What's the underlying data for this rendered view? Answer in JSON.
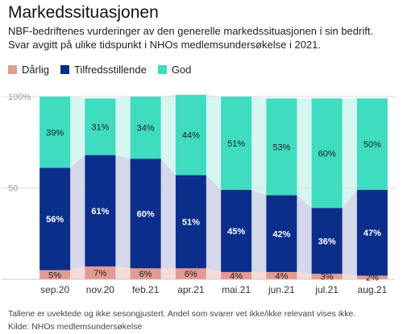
{
  "title": "Markedssituasjonen",
  "subtitle": "NBF-bedriftenes vurderinger av den generelle markedssituasjonen i sin bedrift. Svar avgitt på ulike tidspunkt i NHOs medlemsundersøkelse i 2021.",
  "footnote": "Tallene er uvektede og ikke sesongjustert. Andel som svarer vet ikke/ikke relevant vises ikke.",
  "source": "Kilde: NHOs medlemsundersøkelse",
  "colors": {
    "darlig": "#e29b93",
    "tilfreds": "#0b2e8a",
    "god": "#3fdcc0",
    "darlig_band": "#f6dcd9",
    "tilfreds_band": "#d4d8ea",
    "god_band": "#d6f6f0"
  },
  "chart_data": {
    "type": "bar",
    "stacked": true,
    "categories": [
      "sep.20",
      "nov.20",
      "feb.21",
      "apr.21",
      "mai.21",
      "jun.21",
      "jul.21",
      "aug.21"
    ],
    "series": [
      {
        "name": "Dårlig",
        "values": [
          5,
          7,
          6,
          6,
          4,
          4,
          3,
          2
        ],
        "labels": [
          "5%",
          "7%",
          "6%",
          "6%",
          "4%",
          "4%",
          "3%",
          "2%"
        ]
      },
      {
        "name": "Tilfredsstillende",
        "values": [
          56,
          61,
          60,
          51,
          45,
          42,
          36,
          47
        ],
        "labels": [
          "56%",
          "61%",
          "60%",
          "51%",
          "45%",
          "42%",
          "36%",
          "47%"
        ]
      },
      {
        "name": "God",
        "values": [
          39,
          31,
          34,
          44,
          51,
          53,
          60,
          50
        ],
        "labels": [
          "39%",
          "31%",
          "34%",
          "44%",
          "51%",
          "53%",
          "60%",
          "50%"
        ]
      }
    ],
    "ylim": [
      0,
      100
    ],
    "yticks": [
      0,
      50,
      100
    ],
    "ytick_labels": [
      "",
      "50",
      "100%"
    ],
    "legend_position": "top-left"
  }
}
